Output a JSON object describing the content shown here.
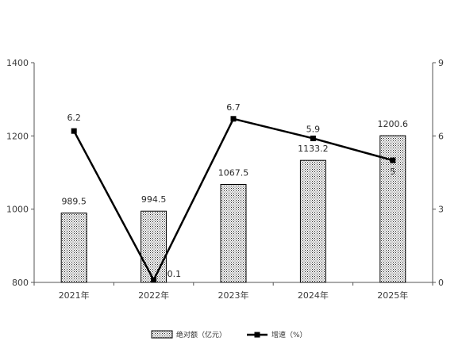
{
  "chart_data": {
    "type": "bar+line",
    "categories": [
      "2021年",
      "2022年",
      "2023年",
      "2024年",
      "2025年"
    ],
    "series": [
      {
        "name": "绝对额（亿元）",
        "type": "bar",
        "axis": "left",
        "values": [
          989.5,
          994.5,
          1067.5,
          1133.2,
          1200.6
        ],
        "labels": [
          "989.5",
          "994.5",
          "1067.5",
          "1133.2",
          "1200.6"
        ]
      },
      {
        "name": "增速（%）",
        "type": "line",
        "axis": "right",
        "values": [
          6.2,
          0.1,
          6.7,
          5.9,
          5.0
        ],
        "labels": [
          "6.2",
          "0.1",
          "6.7",
          "5.9",
          "5"
        ]
      }
    ],
    "left_axis": {
      "min": 800,
      "max": 1400,
      "ticks": [
        "800",
        "1000",
        "1200",
        "1400"
      ]
    },
    "right_axis": {
      "min": 0,
      "max": 9,
      "ticks": [
        "0",
        "3",
        "6",
        "9"
      ]
    },
    "grid": false,
    "legend_position": "bottom",
    "colors": {
      "bar_fill": "dotted-pattern",
      "bar_edge": "#000000",
      "line": "#000000",
      "axis": "#555555"
    }
  }
}
